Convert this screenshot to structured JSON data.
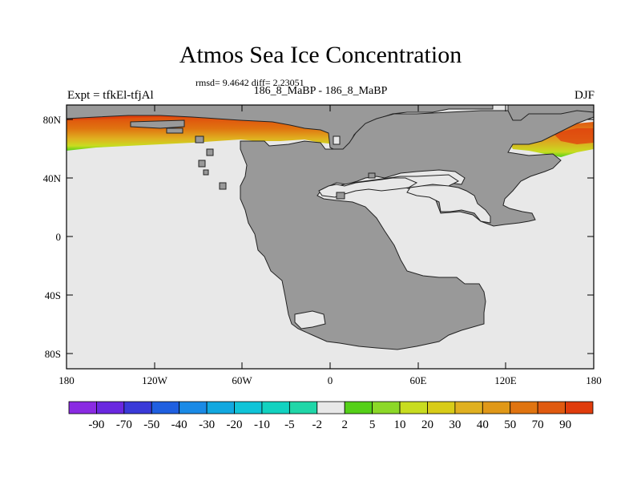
{
  "title": "Atmos Sea Ice Concentration",
  "stats": "rmsd= 9.4642 diff= 2.23051",
  "subtitle": "186_8_MaBP - 186_8_MaBP",
  "experiment": "Expt = tfkEl-tfjAl",
  "season": "DJF",
  "map": {
    "projection": "cylindrical equidistant",
    "lon_range": [
      -180,
      180
    ],
    "lat_range": [
      -90,
      90
    ],
    "x_ticks": [
      "180",
      "120W",
      "60W",
      "0",
      "60E",
      "120E",
      "180"
    ],
    "y_ticks": [
      "80N",
      "40N",
      "0",
      "40S",
      "80S"
    ],
    "ocean_color": "#e8e8e8",
    "land_color": "#999999"
  },
  "colorbar": {
    "labels": [
      "-90",
      "-70",
      "-50",
      "-40",
      "-30",
      "-20",
      "-10",
      "-5",
      "-2",
      "2",
      "5",
      "10",
      "20",
      "30",
      "40",
      "50",
      "70",
      "90"
    ],
    "colors": [
      "#8a2be2",
      "#6a28e0",
      "#3a3ad8",
      "#1f5fe0",
      "#1a8ae6",
      "#12a8e0",
      "#10c4d8",
      "#12d2c0",
      "#20d6a8",
      "#e8e8e8",
      "#55d018",
      "#8cd828",
      "#c8dc20",
      "#d8cc18",
      "#e0b020",
      "#e09818",
      "#e07410",
      "#e05a10",
      "#e03c0c"
    ]
  }
}
